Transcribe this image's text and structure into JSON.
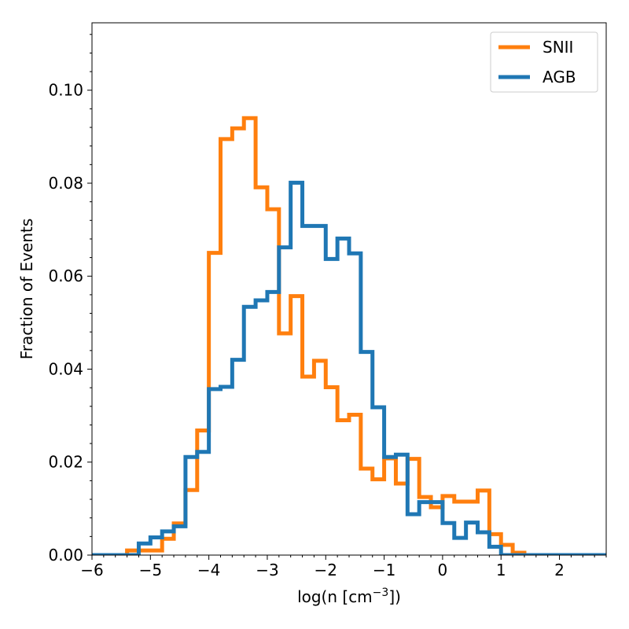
{
  "chart_data": {
    "type": "histogram-step",
    "title": "",
    "xlabel": "log(n [cm",
    "xlabel_sup": "−3",
    "xlabel_suffix": "])",
    "ylabel": "Fraction of Events",
    "xlim": [
      -6,
      2.8
    ],
    "ylim": [
      0,
      0.1145
    ],
    "x_ticks": [
      -6,
      -5,
      -4,
      -3,
      -2,
      -1,
      0,
      1,
      2
    ],
    "x_tick_labels": [
      "−6",
      "−5",
      "−4",
      "−3",
      "−2",
      "−1",
      "0",
      "1",
      "2"
    ],
    "y_ticks": [
      0,
      0.02,
      0.04,
      0.06,
      0.08,
      0.1
    ],
    "y_tick_labels": [
      "0.00",
      "0.02",
      "0.04",
      "0.06",
      "0.08",
      "0.10"
    ],
    "legend_position": "top-right",
    "series": [
      {
        "name": "SNII",
        "color": "#ff7f0e",
        "bin_edges": [
          -6.0,
          -5.4,
          -5.2,
          -5.0,
          -4.8,
          -4.6,
          -4.4,
          -4.2,
          -4.0,
          -3.8,
          -3.6,
          -3.4,
          -3.2,
          -3.0,
          -2.8,
          -2.6,
          -2.4,
          -2.2,
          -2.0,
          -1.8,
          -1.6,
          -1.4,
          -1.2,
          -1.0,
          -0.8,
          -0.6,
          -0.4,
          -0.2,
          0.0,
          0.2,
          0.4,
          0.6,
          0.8,
          1.0,
          1.2,
          1.4,
          2.8
        ],
        "values": [
          0.0,
          0.001,
          0.001,
          0.001,
          0.0035,
          0.0068,
          0.014,
          0.0268,
          0.065,
          0.0895,
          0.0918,
          0.094,
          0.0791,
          0.0744,
          0.0477,
          0.0557,
          0.0384,
          0.0418,
          0.0361,
          0.029,
          0.0302,
          0.0186,
          0.0163,
          0.0208,
          0.0154,
          0.0207,
          0.0125,
          0.0103,
          0.0127,
          0.0115,
          0.0115,
          0.0139,
          0.0045,
          0.0022,
          0.0005,
          0.0
        ]
      },
      {
        "name": "AGB",
        "color": "#1f77b4",
        "bin_edges": [
          -6.0,
          -5.2,
          -5.0,
          -4.8,
          -4.6,
          -4.4,
          -4.2,
          -4.0,
          -3.8,
          -3.6,
          -3.4,
          -3.2,
          -3.0,
          -2.8,
          -2.6,
          -2.4,
          -2.2,
          -2.0,
          -1.8,
          -1.6,
          -1.4,
          -1.2,
          -1.0,
          -0.8,
          -0.6,
          -0.4,
          -0.2,
          0.0,
          0.2,
          0.4,
          0.6,
          0.8,
          1.0,
          2.8
        ],
        "values": [
          0.0,
          0.0025,
          0.0038,
          0.0051,
          0.0062,
          0.0211,
          0.0222,
          0.0357,
          0.0362,
          0.042,
          0.0534,
          0.0548,
          0.0566,
          0.0662,
          0.0801,
          0.0708,
          0.0708,
          0.0637,
          0.0681,
          0.0649,
          0.0437,
          0.0318,
          0.0211,
          0.0216,
          0.0088,
          0.0114,
          0.0114,
          0.0069,
          0.0037,
          0.007,
          0.0049,
          0.0018,
          0.0
        ]
      }
    ]
  }
}
